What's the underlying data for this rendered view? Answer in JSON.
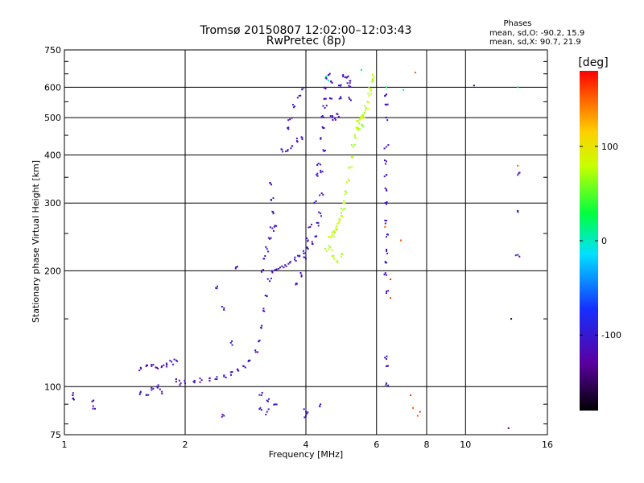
{
  "chart_data": {
    "type": "scatter",
    "title": "Tromsø 20150807 12:02:00–12:03:43",
    "subtitle": "RwPretec (8p)",
    "xlabel": "Frequency [MHz]",
    "ylabel": "Stationary phase Virtual Height [km]",
    "x_scale": "log2",
    "y_scale": "log",
    "xlim": [
      1,
      16
    ],
    "ylim": [
      75,
      750
    ],
    "x_ticks": [
      1,
      2,
      4,
      6,
      8,
      10,
      16
    ],
    "x_tick_labels": [
      "1",
      "2",
      "4",
      "6",
      "8",
      "10",
      "16"
    ],
    "y_ticks": [
      75,
      100,
      200,
      300,
      400,
      500,
      600,
      750
    ],
    "y_tick_labels": [
      "75",
      "100",
      "200",
      "300",
      "400",
      "500",
      "600",
      "750"
    ],
    "grid": true,
    "legend": {
      "heading": "Phases",
      "lines": [
        "mean, sd,O: -90.2, 15.9",
        "mean, sd,X:  90.7, 21.9"
      ]
    },
    "colorbar": {
      "label": "[deg]",
      "range": [
        -180,
        180
      ],
      "ticks": [
        100,
        0,
        -100
      ],
      "tick_labels": [
        "100",
        "0",
        "-100"
      ]
    },
    "series": [
      {
        "values_phase_deg": -110,
        "points": [
          [
            1.05,
            95
          ],
          [
            1.05,
            93
          ],
          [
            1.18,
            92
          ],
          [
            1.18,
            89
          ],
          [
            1.55,
            112
          ],
          [
            1.6,
            113
          ],
          [
            1.65,
            113
          ],
          [
            1.7,
            112
          ],
          [
            1.75,
            113
          ],
          [
            1.8,
            114
          ],
          [
            1.85,
            116
          ],
          [
            1.9,
            117
          ],
          [
            1.55,
            97
          ],
          [
            1.6,
            95
          ],
          [
            1.65,
            98
          ],
          [
            1.7,
            100
          ],
          [
            1.75,
            97
          ],
          [
            1.9,
            103
          ],
          [
            1.95,
            102
          ],
          [
            2.0,
            102
          ],
          [
            2.1,
            103
          ],
          [
            2.2,
            104
          ],
          [
            2.3,
            105
          ],
          [
            2.4,
            106
          ],
          [
            2.5,
            107
          ],
          [
            2.6,
            109
          ],
          [
            2.7,
            111
          ],
          [
            2.8,
            113
          ],
          [
            2.9,
            117
          ],
          [
            3.0,
            123
          ],
          [
            3.05,
            131
          ],
          [
            3.1,
            142
          ],
          [
            3.15,
            157
          ],
          [
            3.2,
            172
          ],
          [
            3.25,
            188
          ],
          [
            3.3,
            198
          ],
          [
            3.35,
            201
          ],
          [
            3.45,
            204
          ],
          [
            3.55,
            207
          ],
          [
            3.65,
            210
          ],
          [
            3.75,
            214
          ],
          [
            3.85,
            218
          ],
          [
            3.95,
            222
          ],
          [
            4.05,
            228
          ],
          [
            4.15,
            235
          ],
          [
            4.25,
            246
          ],
          [
            4.3,
            262
          ],
          [
            4.35,
            282
          ],
          [
            4.38,
            318
          ],
          [
            4.4,
            362
          ],
          [
            4.42,
            412
          ],
          [
            4.44,
            470
          ],
          [
            4.46,
            530
          ],
          [
            4.48,
            595
          ],
          [
            4.5,
            640
          ],
          [
            4.56,
            645
          ],
          [
            4.62,
            620
          ],
          [
            4.64,
            560
          ],
          [
            4.66,
            505
          ],
          [
            4.72,
            498
          ],
          [
            4.8,
            510
          ],
          [
            4.85,
            560
          ],
          [
            4.88,
            605
          ],
          [
            4.95,
            640
          ],
          [
            5.05,
            635
          ],
          [
            5.12,
            605
          ],
          [
            5.18,
            555
          ],
          [
            5.15,
            615
          ],
          [
            3.1,
            200
          ],
          [
            3.15,
            215
          ],
          [
            3.2,
            228
          ],
          [
            3.25,
            242
          ],
          [
            3.3,
            258
          ],
          [
            3.35,
            262
          ],
          [
            3.3,
            285
          ],
          [
            3.28,
            305
          ],
          [
            3.28,
            335
          ],
          [
            3.5,
            408
          ],
          [
            3.6,
            410
          ],
          [
            3.7,
            422
          ],
          [
            3.8,
            435
          ],
          [
            3.9,
            445
          ],
          [
            3.6,
            470
          ],
          [
            3.65,
            495
          ],
          [
            3.75,
            535
          ],
          [
            3.85,
            570
          ],
          [
            3.95,
            598
          ],
          [
            3.8,
            185
          ],
          [
            3.9,
            195
          ],
          [
            4.0,
            215
          ],
          [
            4.05,
            240
          ],
          [
            4.1,
            260
          ],
          [
            4.2,
            300
          ],
          [
            4.25,
            355
          ],
          [
            4.3,
            380
          ],
          [
            4.35,
            440
          ],
          [
            4.4,
            505
          ],
          [
            4.45,
            560
          ],
          [
            6.35,
            575
          ],
          [
            6.35,
            540
          ],
          [
            6.35,
            500
          ],
          [
            6.35,
            420
          ],
          [
            6.35,
            385
          ],
          [
            6.35,
            355
          ],
          [
            6.35,
            325
          ],
          [
            6.35,
            298
          ],
          [
            6.35,
            270
          ],
          [
            6.35,
            245
          ],
          [
            6.35,
            225
          ],
          [
            6.35,
            210
          ],
          [
            6.35,
            195
          ],
          [
            6.35,
            175
          ],
          [
            6.35,
            118
          ],
          [
            6.35,
            113
          ],
          [
            6.35,
            102
          ],
          [
            2.4,
            180
          ],
          [
            2.5,
            160
          ],
          [
            2.6,
            130
          ],
          [
            3.1,
            95
          ],
          [
            3.2,
            92
          ],
          [
            3.1,
            87
          ],
          [
            3.2,
            86
          ],
          [
            3.35,
            90
          ],
          [
            4.0,
            86
          ],
          [
            4.0,
            84
          ],
          [
            4.35,
            90
          ],
          [
            13.5,
            355
          ],
          [
            13.5,
            285
          ],
          [
            13.5,
            220
          ],
          [
            2.7,
            205
          ],
          [
            2.5,
            84
          ]
        ]
      },
      {
        "values_phase_deg": 75,
        "points": [
          [
            4.6,
            245
          ],
          [
            4.65,
            248
          ],
          [
            4.7,
            252
          ],
          [
            4.75,
            258
          ],
          [
            4.8,
            265
          ],
          [
            4.85,
            270
          ],
          [
            4.9,
            278
          ],
          [
            4.95,
            288
          ],
          [
            5.0,
            300
          ],
          [
            5.05,
            320
          ],
          [
            5.1,
            345
          ],
          [
            5.15,
            372
          ],
          [
            5.2,
            395
          ],
          [
            5.25,
            420
          ],
          [
            5.3,
            445
          ],
          [
            5.35,
            470
          ],
          [
            5.4,
            490
          ],
          [
            5.45,
            495
          ],
          [
            5.5,
            500
          ],
          [
            5.55,
            508
          ],
          [
            5.6,
            515
          ],
          [
            5.65,
            530
          ],
          [
            5.7,
            550
          ],
          [
            5.75,
            570
          ],
          [
            5.8,
            595
          ],
          [
            5.85,
            620
          ],
          [
            5.9,
            640
          ],
          [
            4.7,
            215
          ],
          [
            4.8,
            210
          ],
          [
            4.9,
            218
          ],
          [
            4.5,
            225
          ],
          [
            4.6,
            230
          ],
          [
            5.4,
            470
          ],
          [
            5.5,
            480
          ],
          [
            5.6,
            500
          ]
        ]
      },
      {
        "values_phase_deg": 10,
        "points": [
          [
            6.35,
            600
          ],
          [
            7.0,
            590
          ],
          [
            5.5,
            665
          ],
          [
            13.5,
            600
          ],
          [
            4.5,
            640
          ],
          [
            4.55,
            625
          ]
        ]
      },
      {
        "values_phase_deg": 160,
        "points": [
          [
            6.3,
            260
          ],
          [
            6.5,
            190
          ],
          [
            7.3,
            95
          ],
          [
            7.4,
            88
          ],
          [
            7.7,
            86
          ],
          [
            7.6,
            84
          ],
          [
            7.5,
            655
          ],
          [
            6.9,
            240
          ],
          [
            6.5,
            170
          ],
          [
            13.5,
            375
          ]
        ]
      },
      {
        "values_phase_deg": -150,
        "points": [
          [
            13.0,
            150
          ],
          [
            12.8,
            78
          ],
          [
            10.5,
            606
          ]
        ]
      }
    ]
  }
}
